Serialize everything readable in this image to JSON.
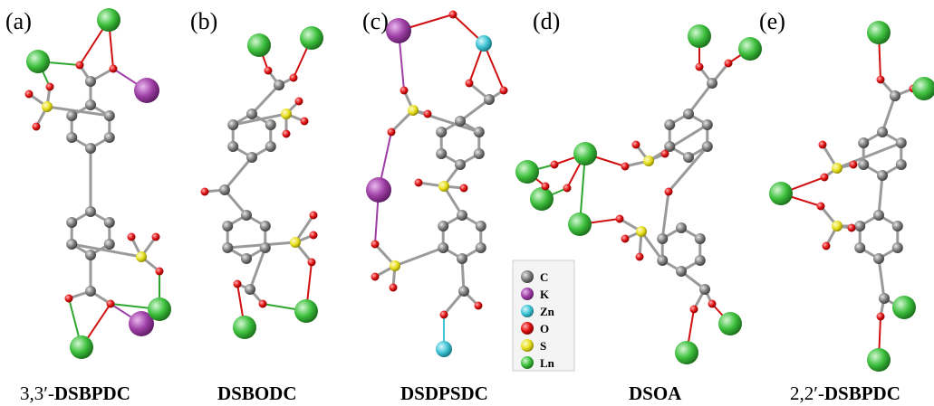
{
  "colors": {
    "C": "#8a8a8a",
    "K": "#9e3fa6",
    "Zn": "#3fc4d6",
    "O": "#e01010",
    "S": "#e8e020",
    "Ln": "#3cbf3c",
    "bond": "#9a9a9a"
  },
  "panels": [
    {
      "letter": "(a)",
      "caption_prefix": "3,3′-",
      "caption_bold": "DSBPDC"
    },
    {
      "letter": "(b)",
      "caption_prefix": "",
      "caption_bold": "DSBODC"
    },
    {
      "letter": "(c)",
      "caption_prefix": "",
      "caption_bold": "DSDPSDC"
    },
    {
      "letter": "(d)",
      "caption_prefix": "",
      "caption_bold": "DSOA"
    },
    {
      "letter": "(e)",
      "caption_prefix": "2,2′-",
      "caption_bold": "DSBPDC"
    }
  ],
  "legend": [
    {
      "symbol": "C",
      "label": "C"
    },
    {
      "symbol": "K",
      "label": "K"
    },
    {
      "symbol": "Zn",
      "label": "Zn"
    },
    {
      "symbol": "O",
      "label": "O"
    },
    {
      "symbol": "S",
      "label": "S"
    },
    {
      "symbol": "Ln",
      "label": "Ln"
    }
  ]
}
